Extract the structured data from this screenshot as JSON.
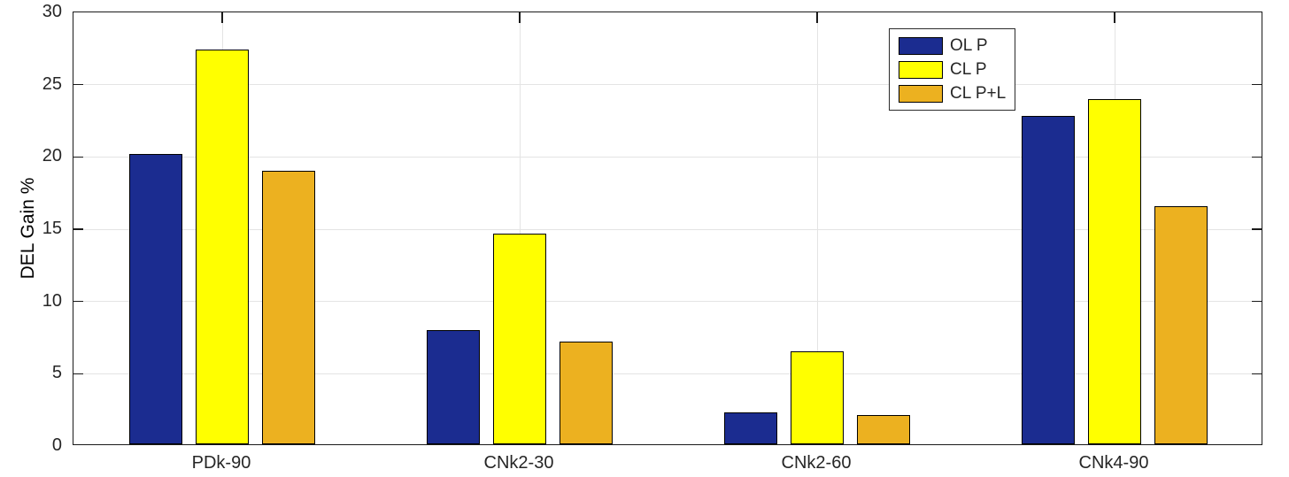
{
  "chart_data": {
    "type": "bar",
    "title": "",
    "xlabel": "",
    "ylabel": "DEL Gain %",
    "ylim": [
      0,
      30
    ],
    "ytick_step": 5,
    "grid": true,
    "legend_position": "top-right-inside",
    "categories": [
      "PDk-90",
      "CNk2-30",
      "CNk2-60",
      "CNk4-90"
    ],
    "series": [
      {
        "name": "OL P",
        "color": "#1B2C90",
        "values": [
          20.1,
          7.9,
          2.2,
          22.7
        ]
      },
      {
        "name": "CL P",
        "color": "#FFFF00",
        "values": [
          27.3,
          14.6,
          6.4,
          23.9
        ]
      },
      {
        "name": "CL P+L",
        "color": "#ECB120",
        "values": [
          18.9,
          7.1,
          2.0,
          16.5
        ]
      }
    ],
    "colors": {
      "grid": "#E4E4E4",
      "axis": "#1A1A1A",
      "text": "#262626",
      "bar_edge": "#000000",
      "background": "#FFFFFF"
    }
  }
}
